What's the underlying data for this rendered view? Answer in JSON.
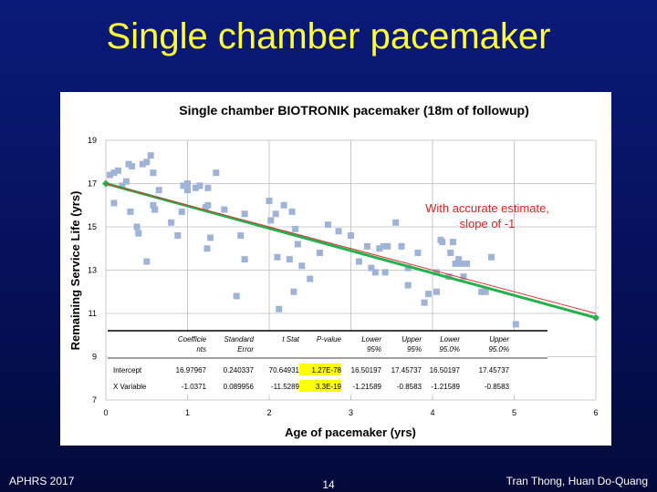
{
  "slide": {
    "title": "Single chamber pacemaker",
    "footer_left": "APHRS 2017",
    "page_number": "14",
    "footer_right": "Tran Thong, Huan Do-Quang"
  },
  "colors": {
    "background": "#06105a",
    "title": "#ffff33",
    "points": "#9fb3d6",
    "regression_line": "#22b14c",
    "reference_line": "#e03030",
    "highlight": "#ffff00"
  },
  "chart_data": {
    "type": "scatter",
    "title": "Single chamber BIOTRONIK pacemaker (18m of  followup)",
    "xlabel": "Age of pacemaker  (yrs)",
    "ylabel": "Remaining  Service Life (yrs)",
    "xlim": [
      0,
      6
    ],
    "ylim": [
      7,
      19
    ],
    "xticks": [
      0,
      1,
      2,
      3,
      4,
      5,
      6
    ],
    "yticks": [
      7,
      9,
      11,
      13,
      15,
      17,
      19
    ],
    "grid": true,
    "annotation": [
      "With accurate estimate,",
      "slope of -1"
    ],
    "points": [
      [
        0.05,
        17.4
      ],
      [
        0.1,
        17.5
      ],
      [
        0.1,
        16.1
      ],
      [
        0.15,
        17.6
      ],
      [
        0.2,
        16.9
      ],
      [
        0.25,
        17.1
      ],
      [
        0.28,
        17.9
      ],
      [
        0.3,
        15.7
      ],
      [
        0.32,
        17.8
      ],
      [
        0.38,
        15.0
      ],
      [
        0.4,
        14.7
      ],
      [
        0.45,
        17.9
      ],
      [
        0.5,
        18.0
      ],
      [
        0.5,
        13.4
      ],
      [
        0.55,
        18.3
      ],
      [
        0.58,
        17.5
      ],
      [
        0.58,
        16.0
      ],
      [
        0.6,
        15.8
      ],
      [
        0.65,
        16.7
      ],
      [
        0.8,
        15.2
      ],
      [
        0.88,
        14.6
      ],
      [
        0.93,
        15.7
      ],
      [
        0.95,
        16.9
      ],
      [
        1.0,
        16.7
      ],
      [
        1.0,
        17.0
      ],
      [
        1.1,
        16.8
      ],
      [
        1.15,
        16.9
      ],
      [
        1.22,
        15.9
      ],
      [
        1.24,
        14.0
      ],
      [
        1.25,
        16.8
      ],
      [
        1.25,
        16.0
      ],
      [
        1.28,
        14.5
      ],
      [
        1.35,
        17.5
      ],
      [
        1.45,
        15.8
      ],
      [
        1.6,
        11.8
      ],
      [
        1.65,
        14.6
      ],
      [
        1.7,
        15.6
      ],
      [
        1.7,
        13.5
      ],
      [
        2.0,
        16.2
      ],
      [
        2.02,
        15.3
      ],
      [
        2.08,
        15.6
      ],
      [
        2.1,
        13.6
      ],
      [
        2.12,
        11.2
      ],
      [
        2.18,
        16.0
      ],
      [
        2.25,
        13.5
      ],
      [
        2.28,
        15.7
      ],
      [
        2.3,
        12.0
      ],
      [
        2.32,
        14.9
      ],
      [
        2.35,
        14.2
      ],
      [
        2.4,
        13.2
      ],
      [
        2.5,
        12.6
      ],
      [
        2.62,
        13.8
      ],
      [
        2.72,
        15.1
      ],
      [
        2.85,
        14.8
      ],
      [
        3.0,
        14.6
      ],
      [
        3.1,
        13.4
      ],
      [
        3.2,
        14.1
      ],
      [
        3.25,
        13.1
      ],
      [
        3.3,
        12.9
      ],
      [
        3.35,
        14.0
      ],
      [
        3.4,
        14.1
      ],
      [
        3.42,
        12.9
      ],
      [
        3.45,
        14.1
      ],
      [
        3.55,
        15.2
      ],
      [
        3.62,
        14.1
      ],
      [
        3.7,
        13.1
      ],
      [
        3.7,
        12.3
      ],
      [
        3.82,
        13.8
      ],
      [
        3.9,
        11.5
      ],
      [
        3.95,
        11.9
      ],
      [
        4.05,
        12.0
      ],
      [
        4.05,
        12.9
      ],
      [
        4.1,
        14.4
      ],
      [
        4.12,
        14.3
      ],
      [
        4.2,
        12.7
      ],
      [
        4.22,
        13.8
      ],
      [
        4.25,
        14.3
      ],
      [
        4.28,
        13.3
      ],
      [
        4.32,
        13.5
      ],
      [
        4.35,
        13.3
      ],
      [
        4.38,
        12.7
      ],
      [
        4.42,
        13.3
      ],
      [
        4.6,
        12.0
      ],
      [
        4.65,
        12.0
      ],
      [
        4.72,
        13.6
      ],
      [
        5.02,
        10.5
      ]
    ],
    "series": [
      {
        "kind": "regression",
        "points": [
          [
            0,
            17.0
          ],
          [
            6,
            10.8
          ]
        ]
      },
      {
        "kind": "reference",
        "points": [
          [
            0,
            17.0
          ],
          [
            6,
            11.0
          ]
        ]
      }
    ],
    "table": {
      "columns": [
        [
          "Coefficie",
          "nts"
        ],
        [
          "Standard",
          "Error"
        ],
        [
          "t Stat",
          ""
        ],
        [
          "P-value",
          ""
        ],
        [
          "Lower",
          "95%"
        ],
        [
          "Upper",
          "95%"
        ],
        [
          "Lower",
          "95.0%"
        ],
        [
          "Upper",
          "95.0%"
        ]
      ],
      "rows": [
        {
          "label": "Intercept",
          "values": [
            "16.97967",
            "0.240337",
            "70.64931",
            "1.27E-78",
            "16.50197",
            "17.45737",
            "16.50197",
            "17.45737"
          ]
        },
        {
          "label": "X Variable",
          "values": [
            "-1.0371",
            "0.089956",
            "-11.5289",
            "3.3E-19",
            "-1.21589",
            "-0.8583",
            "-1.21589",
            "-0.8583"
          ]
        }
      ],
      "highlight_column": 3
    }
  }
}
